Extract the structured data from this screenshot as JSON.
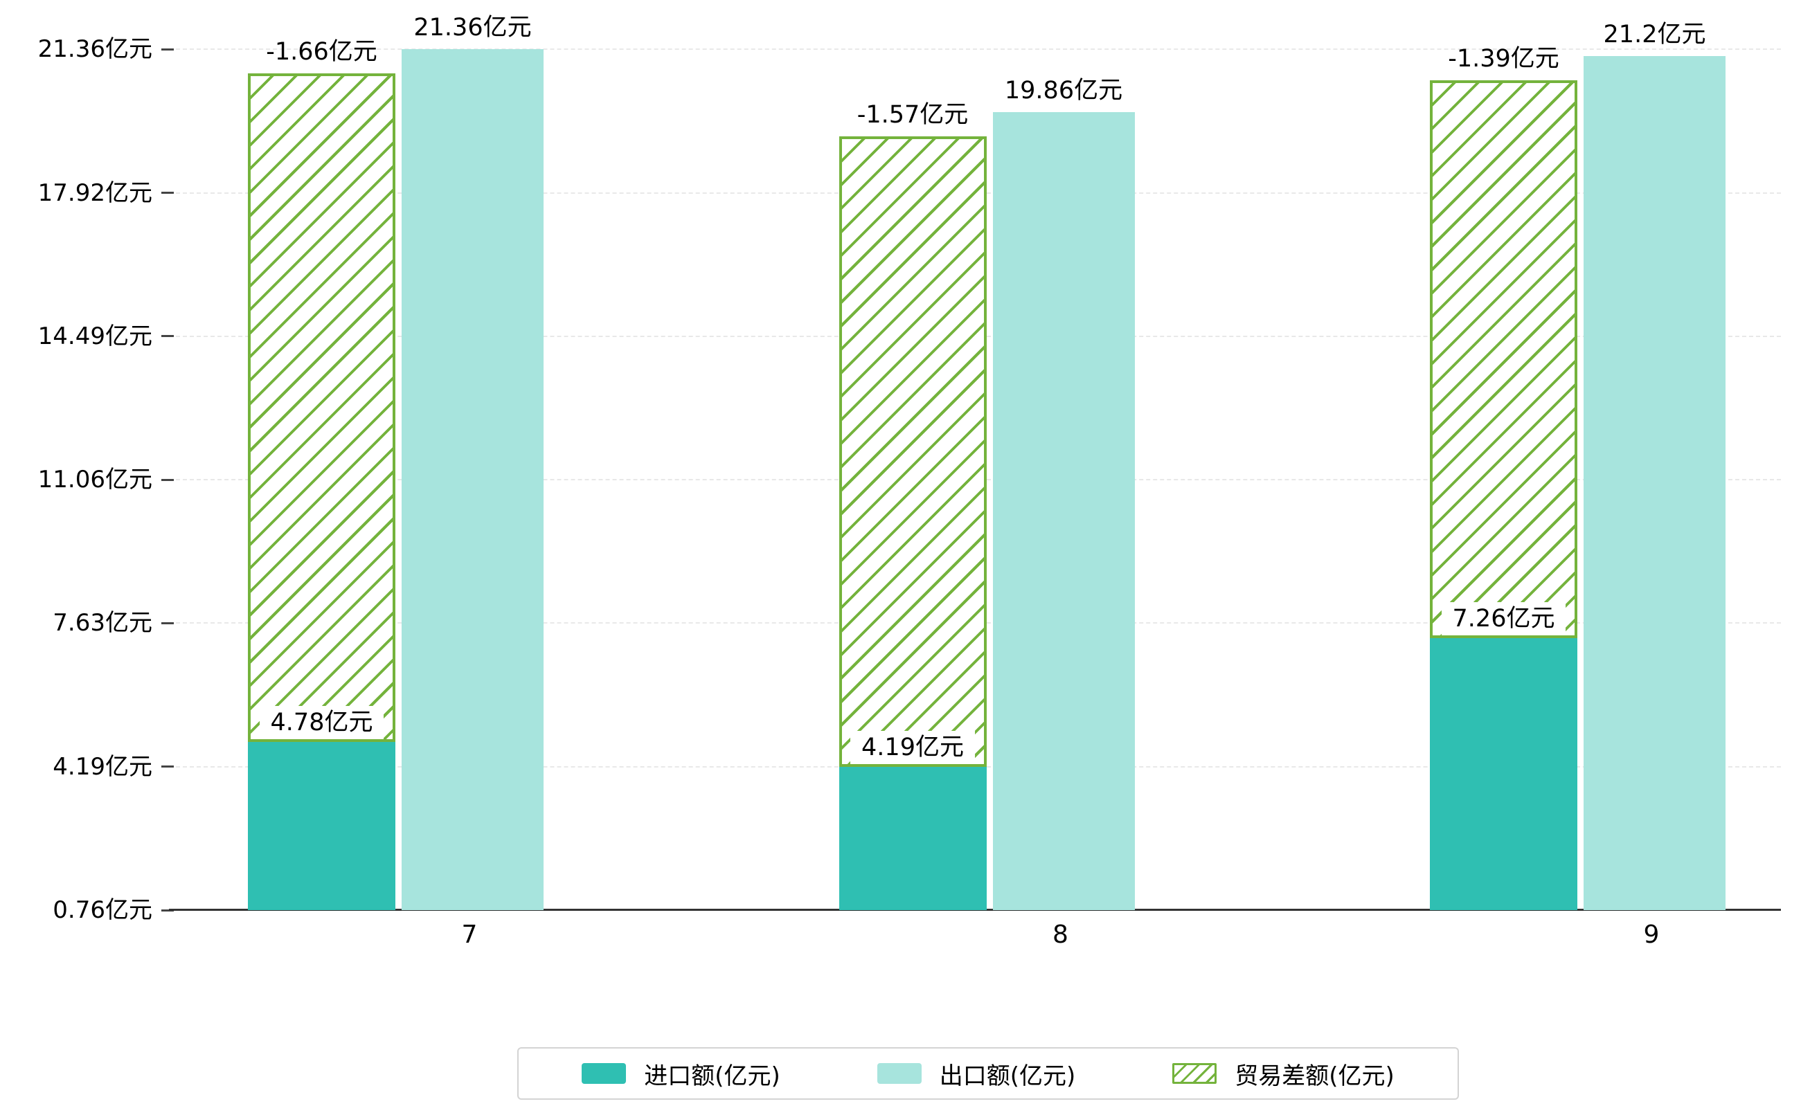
{
  "chart_data": {
    "type": "bar",
    "title": "",
    "categories": [
      "7",
      "8",
      "9"
    ],
    "series": [
      {
        "name": "进口额(亿元)",
        "type": "bar",
        "values": [
          4.78,
          4.19,
          7.26
        ],
        "labels": [
          "4.78亿元",
          "4.19亿元",
          "7.26亿元"
        ],
        "color": "#2fbfb2"
      },
      {
        "name": "出口额(亿元)",
        "type": "bar",
        "values": [
          21.36,
          19.86,
          21.2
        ],
        "labels": [
          "21.36亿元",
          "19.86亿元",
          "21.2亿元"
        ],
        "color": "#a7e4dd"
      },
      {
        "name": "贸易差额(亿元)",
        "type": "hatched-bar-stacked-on-import",
        "values": [
          -1.66,
          -1.57,
          -1.39
        ],
        "labels": [
          "-1.66亿元",
          "-1.57亿元",
          "-1.39亿元"
        ],
        "color": "#74b33c"
      }
    ],
    "y_axis": {
      "tick_labels": [
        "0.76亿元",
        "4.19亿元",
        "7.63亿元",
        "11.06亿元",
        "14.49亿元",
        "17.92亿元",
        "21.36亿元"
      ],
      "tick_values": [
        0.76,
        4.19,
        7.63,
        11.06,
        14.49,
        17.92,
        21.36
      ]
    },
    "x_axis": {
      "tick_labels": [
        "7",
        "8",
        "9"
      ]
    },
    "ylim": [
      0.76,
      21.36
    ],
    "grid": true,
    "legend": {
      "position": "bottom",
      "entries": [
        "进口额(亿元)",
        "出口额(亿元)",
        "贸易差额(亿元)"
      ]
    },
    "colors": {
      "import": "#2fbfb2",
      "export": "#a7e4dd",
      "balance": "#74b33c",
      "grid": "#e8e8e8",
      "axis": "#333333",
      "text": "#000000"
    }
  }
}
